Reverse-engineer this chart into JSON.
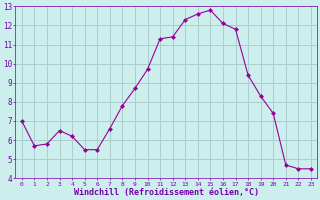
{
  "x": [
    0,
    1,
    2,
    3,
    4,
    5,
    6,
    7,
    8,
    9,
    10,
    11,
    12,
    13,
    14,
    15,
    16,
    17,
    18,
    19,
    20,
    21,
    22,
    23
  ],
  "y": [
    7.0,
    5.7,
    5.8,
    6.5,
    6.2,
    5.5,
    5.5,
    6.6,
    7.8,
    8.7,
    9.7,
    11.3,
    11.4,
    12.3,
    12.6,
    12.8,
    12.1,
    11.8,
    9.4,
    8.3,
    7.4,
    4.7,
    4.5,
    4.5
  ],
  "line_color": "#990099",
  "marker": "D",
  "marker_size": 2,
  "bg_color": "#cceeed",
  "grid_color": "#aacccc",
  "xlabel": "Windchill (Refroidissement éolien,°C)",
  "xlabel_color": "#7700aa",
  "tick_color": "#7700aa",
  "ylim": [
    4,
    13
  ],
  "xlim_min": -0.5,
  "xlim_max": 23.5,
  "yticks": [
    4,
    5,
    6,
    7,
    8,
    9,
    10,
    11,
    12,
    13
  ],
  "xticks": [
    0,
    1,
    2,
    3,
    4,
    5,
    6,
    7,
    8,
    9,
    10,
    11,
    12,
    13,
    14,
    15,
    16,
    17,
    18,
    19,
    20,
    21,
    22,
    23
  ]
}
